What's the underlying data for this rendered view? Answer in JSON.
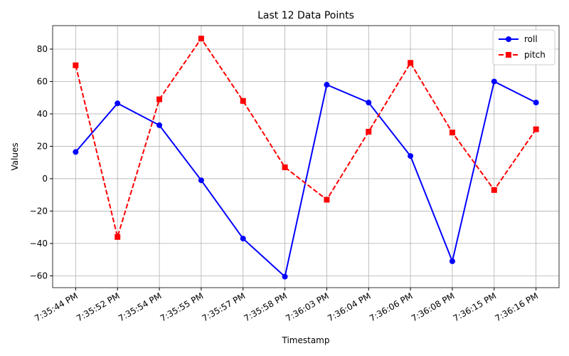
{
  "chart_data": {
    "type": "line",
    "title": "Last 12 Data Points",
    "x_label": "Timestamp",
    "y_label": "Values",
    "categories": [
      "7:35:44 PM",
      "7:35:52 PM",
      "7:35:54 PM",
      "7:35:55 PM",
      "7:35:57 PM",
      "7:35:58 PM",
      "7:36:03 PM",
      "7:36:04 PM",
      "7:36:06 PM",
      "7:36:08 PM",
      "7:36:15 PM",
      "7:36:16 PM"
    ],
    "series": [
      {
        "name": "roll",
        "color": "#0000ff",
        "marker": "circle",
        "dashed": false,
        "values": [
          16.5,
          46.5,
          33,
          -1,
          -37,
          -60.5,
          58,
          47,
          14,
          -51,
          60,
          47
        ]
      },
      {
        "name": "pitch",
        "color": "#ff0000",
        "marker": "square",
        "dashed": true,
        "values": [
          70,
          -36,
          49,
          86.5,
          48,
          7,
          -13,
          29,
          71.5,
          28.5,
          -7,
          30.5
        ]
      }
    ],
    "ylim": [
      -67.3,
      94.5
    ],
    "yticks": [
      {
        "value": -60,
        "label": "−60"
      },
      {
        "value": -40,
        "label": "−40"
      },
      {
        "value": -20,
        "label": "−20"
      },
      0,
      20,
      40,
      60,
      80
    ],
    "grid": true,
    "legend_position": "upper-right"
  }
}
